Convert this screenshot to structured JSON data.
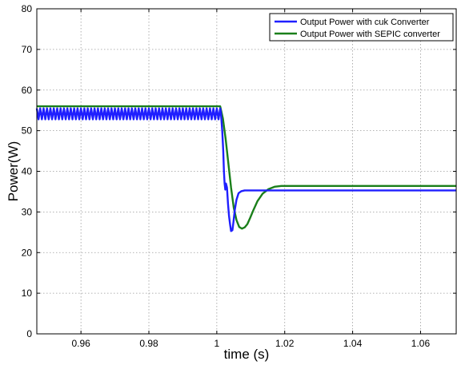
{
  "chart_data": {
    "type": "line",
    "xlabel": "time (s)",
    "ylabel": "Power(W)",
    "xlim": [
      0.947,
      1.0705
    ],
    "ylim": [
      0,
      80
    ],
    "xticks": [
      0.96,
      0.98,
      1,
      1.02,
      1.04,
      1.06
    ],
    "xtick_labels": [
      "0.96",
      "0.98",
      "1",
      "1.02",
      "1.04",
      "1.06"
    ],
    "yticks": [
      0,
      10,
      20,
      30,
      40,
      50,
      60,
      70,
      80
    ],
    "ytick_labels": [
      "0",
      "10",
      "20",
      "30",
      "40",
      "50",
      "60",
      "70",
      "80"
    ],
    "grid": true,
    "legend_position": "top-right",
    "series": [
      {
        "name": "Output Power with cuk Converter",
        "color": "#1f1fff",
        "ripple": {
          "x_end": 1.0012,
          "low": 52.8,
          "high": 55.5,
          "period": 0.001
        },
        "x": [
          1.0012,
          1.0016,
          1.0019,
          1.0021,
          1.0023,
          1.0025,
          1.0027,
          1.003,
          1.0033,
          1.0036,
          1.0039,
          1.0042,
          1.0046,
          1.0049,
          1.0053,
          1.0058,
          1.0064,
          1.0072,
          1.0082,
          1.0095,
          1.011,
          1.013,
          1.016,
          1.02,
          1.0705
        ],
        "y": [
          54.5,
          50,
          45,
          40,
          37,
          35.5,
          37,
          36,
          32,
          29,
          27,
          25.3,
          25.5,
          27.5,
          30.5,
          33,
          34.6,
          35.1,
          35.3,
          35.3,
          35.3,
          35.3,
          35.3,
          35.3,
          35.3
        ]
      },
      {
        "name": "Output Power with SEPIC converter",
        "color": "#1a7f1a",
        "x": [
          0.947,
          1.001,
          1.0018,
          1.0026,
          1.0034,
          1.0042,
          1.005,
          1.0058,
          1.0066,
          1.0074,
          1.0082,
          1.009,
          1.0098,
          1.0108,
          1.012,
          1.0135,
          1.0152,
          1.017,
          1.019,
          1.022,
          1.026,
          1.03,
          1.0705
        ],
        "y": [
          56,
          56,
          53,
          48,
          42,
          36,
          31,
          28,
          26.3,
          25.9,
          26.2,
          27,
          28.5,
          30.5,
          32.7,
          34.5,
          35.6,
          36.2,
          36.4,
          36.4,
          36.4,
          36.4,
          36.4
        ]
      }
    ]
  }
}
